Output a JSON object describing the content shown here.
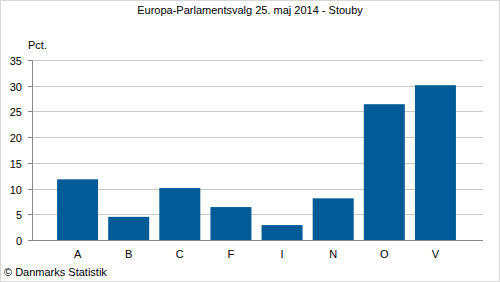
{
  "chart_data": {
    "type": "bar",
    "title": "Europa-Parlamentsvalg 25. maj 2014 - Stouby",
    "y_label": "Pct.",
    "source": "© Danmarks Statistik",
    "categories": [
      "A",
      "B",
      "C",
      "F",
      "I",
      "N",
      "O",
      "V"
    ],
    "values": [
      11.8,
      4.5,
      10.1,
      6.4,
      2.9,
      8.1,
      26.4,
      30.1
    ],
    "color": "#005b96",
    "ylim": [
      0,
      35
    ],
    "yticks": [
      0,
      5,
      10,
      15,
      20,
      25,
      30,
      35
    ],
    "grid": true
  }
}
